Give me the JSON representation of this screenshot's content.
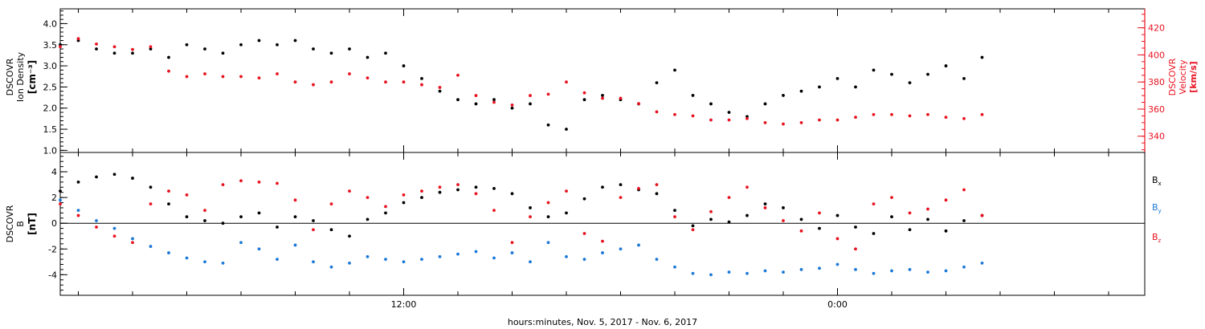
{
  "footer_label": "hours:minutes, Nov. 5, 2017 - Nov. 6, 2017",
  "chart_data": [
    {
      "type": "scatter",
      "panel": "plasma",
      "x_unit": "hours since start of plot window",
      "xlim": [
        0,
        30
      ],
      "x_ticks": [
        {
          "x": 9.5,
          "label": "12:00"
        },
        {
          "x": 21.5,
          "label": "0:00"
        }
      ],
      "left_axis": {
        "label_lines": [
          "DSCOVR",
          "Ion Density"
        ],
        "unit_text": "[cm⁻³]",
        "ylim": [
          0.95,
          4.35
        ],
        "ticks": [
          "1.0",
          "1.5",
          "2.0",
          "2.5",
          "3.0",
          "3.5",
          "4.0"
        ],
        "color": "#000000"
      },
      "right_axis": {
        "label_lines": [
          "DSCOVR",
          "Velocity",
          "[km/s]"
        ],
        "ylim": [
          328,
          434
        ],
        "ticks": [
          "340",
          "360",
          "380",
          "400",
          "420"
        ],
        "color": "#e8121f"
      },
      "series": [
        {
          "color": "#000000",
          "axis": "left",
          "x": [
            0,
            0.5,
            1,
            1.5,
            2,
            2.5,
            3,
            3.5,
            4,
            4.5,
            5,
            5.5,
            6,
            6.5,
            7,
            7.5,
            8,
            8.5,
            9,
            9.5,
            10,
            10.5,
            11,
            11.5,
            12,
            12.5,
            13,
            13.5,
            14,
            14.5,
            15,
            15.5,
            16,
            16.5,
            17,
            17.5,
            18,
            18.5,
            19,
            19.5,
            20,
            20.5,
            21,
            21.5,
            22,
            22.5,
            23,
            23.5,
            24,
            24.5,
            25,
            25.5
          ],
          "values": [
            3.5,
            3.6,
            3.4,
            3.3,
            3.3,
            3.4,
            3.2,
            3.5,
            3.4,
            3.3,
            3.5,
            3.6,
            3.5,
            3.6,
            3.4,
            3.3,
            3.4,
            3.2,
            3.3,
            3.0,
            2.7,
            2.4,
            2.2,
            2.1,
            2.2,
            2.0,
            2.1,
            1.6,
            1.5,
            2.2,
            2.3,
            2.2,
            2.1,
            2.6,
            2.9,
            2.3,
            2.1,
            1.9,
            1.8,
            2.1,
            2.3,
            2.4,
            2.5,
            2.7,
            2.5,
            2.9,
            2.8,
            2.6,
            2.8,
            3.0,
            2.7,
            3.2
          ]
        },
        {
          "color": "#e8121f",
          "axis": "right",
          "x": [
            0,
            0.5,
            1,
            1.5,
            2,
            2.5,
            3,
            3.5,
            4,
            4.5,
            5,
            5.5,
            6,
            6.5,
            7,
            7.5,
            8,
            8.5,
            9,
            9.5,
            10,
            10.5,
            11,
            11.5,
            12,
            12.5,
            13,
            13.5,
            14,
            14.5,
            15,
            15.5,
            16,
            16.5,
            17,
            17.5,
            18,
            18.5,
            19,
            19.5,
            20,
            20.5,
            21,
            21.5,
            22,
            22.5,
            23,
            23.5,
            24,
            24.5,
            25,
            25.5
          ],
          "values": [
            406,
            412,
            408,
            406,
            404,
            406,
            388,
            384,
            386,
            384,
            384,
            383,
            386,
            380,
            378,
            380,
            386,
            383,
            380,
            380,
            378,
            376,
            385,
            370,
            365,
            363,
            370,
            371,
            380,
            372,
            368,
            368,
            364,
            358,
            356,
            355,
            352,
            352,
            353,
            350,
            349,
            350,
            352,
            352,
            354,
            356,
            356,
            355,
            356,
            354,
            353,
            356
          ]
        }
      ]
    },
    {
      "type": "scatter",
      "panel": "magnetic_field",
      "x_unit": "hours since start of plot window",
      "xlim": [
        0,
        30
      ],
      "x_ticks": [
        {
          "x": 9.5,
          "label": "12:00"
        },
        {
          "x": 21.5,
          "label": "0:00"
        }
      ],
      "left_axis": {
        "label_lines": [
          "DSCOVR",
          "B"
        ],
        "unit_text": "[nT]",
        "ylim": [
          -5.6,
          5.5
        ],
        "ticks": [
          "-4",
          "-2",
          "0",
          "2",
          "4"
        ],
        "zero_line": true
      },
      "series": [
        {
          "name": "Bx",
          "color": "#000000",
          "x": [
            0,
            0.5,
            1,
            1.5,
            2,
            2.5,
            3,
            3.5,
            4,
            4.5,
            5,
            5.5,
            6,
            6.5,
            7,
            7.5,
            8,
            8.5,
            9,
            9.5,
            10,
            10.5,
            11,
            11.5,
            12,
            12.5,
            13,
            13.5,
            14,
            14.5,
            15,
            15.5,
            16,
            16.5,
            17,
            17.5,
            18,
            18.5,
            19,
            19.5,
            20,
            20.5,
            21,
            21.5,
            22,
            22.5,
            23,
            23.5,
            24,
            24.5,
            25,
            25.5
          ],
          "values": [
            2.5,
            3.2,
            3.6,
            3.8,
            3.5,
            2.8,
            1.5,
            0.5,
            0.2,
            0.0,
            0.5,
            0.8,
            -0.3,
            0.5,
            0.2,
            -0.5,
            -1.0,
            0.3,
            0.8,
            1.6,
            2.0,
            2.4,
            2.6,
            2.8,
            2.7,
            2.3,
            1.2,
            0.5,
            0.8,
            1.9,
            2.8,
            3.0,
            2.6,
            2.3,
            1.0,
            -0.2,
            0.3,
            0.1,
            0.6,
            1.5,
            1.2,
            0.3,
            -0.4,
            0.6,
            -0.3,
            -0.8,
            0.5,
            -0.5,
            0.3,
            -0.6,
            0.2,
            0.6
          ]
        },
        {
          "name": "By",
          "color": "#1b78d6",
          "x": [
            0,
            0.5,
            1,
            1.5,
            2,
            2.5,
            3,
            3.5,
            4,
            4.5,
            5,
            5.5,
            6,
            6.5,
            7,
            7.5,
            8,
            8.5,
            9,
            9.5,
            10,
            10.5,
            11,
            11.5,
            12,
            12.5,
            13,
            13.5,
            14,
            14.5,
            15,
            15.5,
            16,
            16.5,
            17,
            17.5,
            18,
            18.5,
            19,
            19.5,
            20,
            20.5,
            21,
            21.5,
            22,
            22.5,
            23,
            23.5,
            24,
            24.5,
            25,
            25.5
          ],
          "values": [
            1.8,
            1.0,
            0.2,
            -0.4,
            -1.2,
            -1.8,
            -2.3,
            -2.7,
            -3.0,
            -3.1,
            -1.5,
            -2.0,
            -2.8,
            -1.7,
            -3.0,
            -3.4,
            -3.1,
            -2.6,
            -2.8,
            -3.0,
            -2.8,
            -2.6,
            -2.4,
            -2.2,
            -2.7,
            -2.3,
            -3.0,
            -1.5,
            -2.6,
            -2.8,
            -2.3,
            -2.0,
            -1.7,
            -2.8,
            -3.4,
            -3.9,
            -4.0,
            -3.8,
            -3.9,
            -3.7,
            -3.8,
            -3.6,
            -3.5,
            -3.2,
            -3.6,
            -3.9,
            -3.7,
            -3.6,
            -3.8,
            -3.7,
            -3.4,
            -3.1
          ]
        },
        {
          "name": "Bz",
          "color": "#e8121f",
          "x": [
            0,
            0.5,
            1,
            1.5,
            2,
            2.5,
            3,
            3.5,
            4,
            4.5,
            5,
            5.5,
            6,
            6.5,
            7,
            7.5,
            8,
            8.5,
            9,
            9.5,
            10,
            10.5,
            11,
            11.5,
            12,
            12.5,
            13,
            13.5,
            14,
            14.5,
            15,
            15.5,
            16,
            16.5,
            17,
            17.5,
            18,
            18.5,
            19,
            19.5,
            20,
            20.5,
            21,
            21.5,
            22,
            22.5,
            23,
            23.5,
            24,
            24.5,
            25,
            25.5
          ],
          "values": [
            1.5,
            0.6,
            -0.3,
            -1.0,
            -1.5,
            1.5,
            2.5,
            2.2,
            1.0,
            3.0,
            3.3,
            3.2,
            3.1,
            1.8,
            -0.5,
            1.5,
            2.5,
            2.0,
            1.3,
            2.2,
            2.5,
            2.8,
            3.0,
            2.3,
            1.0,
            -1.5,
            0.5,
            1.6,
            2.5,
            -0.8,
            -1.4,
            2.0,
            2.7,
            3.0,
            0.5,
            -0.5,
            0.9,
            2.0,
            2.8,
            1.2,
            0.2,
            -0.6,
            0.8,
            -1.2,
            -2.0,
            1.5,
            2.0,
            0.8,
            1.1,
            1.8,
            2.6,
            0.6
          ]
        }
      ],
      "legend": [
        "B",
        "B",
        "B"
      ],
      "legend_subscripts": [
        "x",
        "y",
        "z"
      ]
    }
  ]
}
